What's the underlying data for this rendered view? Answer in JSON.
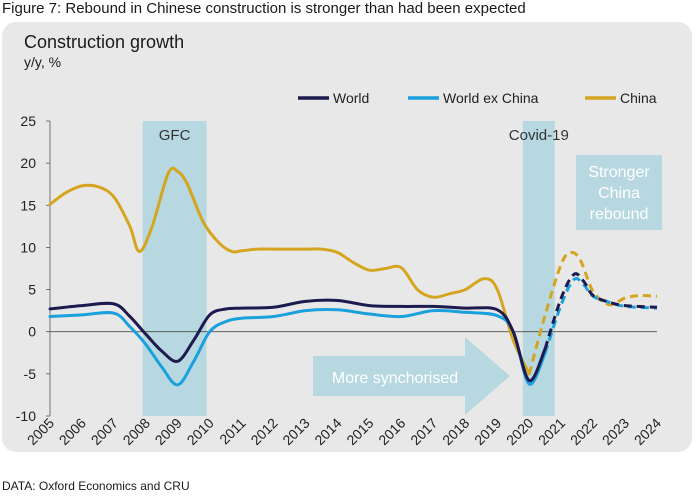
{
  "figure_title": "Figure 7: Rebound in Chinese construction is stronger than had been expected",
  "source": "DATA: Oxford Economics and CRU",
  "colors": {
    "world": "#1c1a4f",
    "world_ex_china": "#1aa0dc",
    "china": "#d6a520",
    "band": "#b7d8e1",
    "arrow": "#b7d8e1",
    "panel": "#e8e8e8"
  },
  "chart_data": {
    "type": "line",
    "title": "Construction growth",
    "ylabel": "y/y, %",
    "xlabel": "",
    "ylim": [
      -10,
      25
    ],
    "xlim": [
      2005,
      2024
    ],
    "yticks": [
      25,
      20,
      15,
      10,
      5,
      0,
      -5,
      -10
    ],
    "xticks": [
      "2005",
      "2006",
      "2007",
      "2008",
      "2009",
      "2010",
      "2011",
      "2012",
      "2013",
      "2014",
      "2015",
      "2016",
      "2017",
      "2018",
      "2019",
      "2020",
      "2021",
      "2022",
      "2023",
      "2024"
    ],
    "legend_position": "top-right",
    "series": [
      {
        "name": "World",
        "color": "#1c1a4f",
        "solid": [
          [
            2005,
            2.7
          ],
          [
            2006,
            3.1
          ],
          [
            2007,
            3.3
          ],
          [
            2007.5,
            1.8
          ],
          [
            2008,
            -0.3
          ],
          [
            2008.5,
            -2.3
          ],
          [
            2009,
            -3.5
          ],
          [
            2009.5,
            -1.0
          ],
          [
            2010,
            2.0
          ],
          [
            2010.5,
            2.7
          ],
          [
            2011,
            2.8
          ],
          [
            2012,
            2.9
          ],
          [
            2013,
            3.6
          ],
          [
            2014,
            3.7
          ],
          [
            2015,
            3.1
          ],
          [
            2016,
            3.0
          ],
          [
            2017,
            3.0
          ],
          [
            2018,
            2.8
          ],
          [
            2019,
            2.6
          ],
          [
            2019.5,
            0.0
          ],
          [
            2020,
            -5.8
          ],
          [
            2020.5,
            -2.0
          ]
        ],
        "forecast": [
          [
            2020.5,
            -2.0
          ],
          [
            2021,
            4.0
          ],
          [
            2021.4,
            6.8
          ],
          [
            2021.7,
            6.0
          ],
          [
            2022,
            4.3
          ],
          [
            2022.5,
            3.5
          ],
          [
            2023,
            3.1
          ],
          [
            2024,
            2.9
          ]
        ]
      },
      {
        "name": "World ex China",
        "color": "#1aa0dc",
        "solid": [
          [
            2005,
            1.8
          ],
          [
            2006,
            2.0
          ],
          [
            2007,
            2.2
          ],
          [
            2007.5,
            0.6
          ],
          [
            2008,
            -1.5
          ],
          [
            2008.5,
            -4.2
          ],
          [
            2009,
            -6.3
          ],
          [
            2009.5,
            -3.5
          ],
          [
            2010,
            0.0
          ],
          [
            2010.5,
            1.2
          ],
          [
            2011,
            1.6
          ],
          [
            2012,
            1.8
          ],
          [
            2013,
            2.5
          ],
          [
            2014,
            2.6
          ],
          [
            2015,
            2.1
          ],
          [
            2016,
            1.8
          ],
          [
            2017,
            2.5
          ],
          [
            2018,
            2.3
          ],
          [
            2019,
            1.9
          ],
          [
            2019.5,
            0.0
          ],
          [
            2020,
            -6.2
          ],
          [
            2020.5,
            -2.5
          ]
        ],
        "forecast": [
          [
            2020.5,
            -2.5
          ],
          [
            2021,
            3.2
          ],
          [
            2021.4,
            6.2
          ],
          [
            2021.7,
            5.6
          ],
          [
            2022,
            4.2
          ],
          [
            2022.5,
            3.5
          ],
          [
            2023,
            3.0
          ],
          [
            2024,
            2.8
          ]
        ]
      },
      {
        "name": "China",
        "color": "#d6a520",
        "solid": [
          [
            2005,
            15.1
          ],
          [
            2005.5,
            16.5
          ],
          [
            2006,
            17.3
          ],
          [
            2006.5,
            17.2
          ],
          [
            2007,
            16.0
          ],
          [
            2007.5,
            12.5
          ],
          [
            2007.8,
            9.5
          ],
          [
            2008.2,
            12.5
          ],
          [
            2008.7,
            18.8
          ],
          [
            2009,
            19.0
          ],
          [
            2009.3,
            17.5
          ],
          [
            2009.8,
            13.0
          ],
          [
            2010.3,
            10.5
          ],
          [
            2010.7,
            9.5
          ],
          [
            2011,
            9.6
          ],
          [
            2011.5,
            9.8
          ],
          [
            2012,
            9.8
          ],
          [
            2013,
            9.8
          ],
          [
            2013.5,
            9.8
          ],
          [
            2014,
            9.4
          ],
          [
            2014.5,
            8.2
          ],
          [
            2015,
            7.3
          ],
          [
            2015.5,
            7.5
          ],
          [
            2016,
            7.6
          ],
          [
            2016.5,
            5.0
          ],
          [
            2017,
            4.1
          ],
          [
            2017.5,
            4.5
          ],
          [
            2018,
            5.0
          ],
          [
            2018.6,
            6.3
          ],
          [
            2019,
            5.0
          ],
          [
            2019.5,
            -1.0
          ],
          [
            2020,
            -5.0
          ]
        ],
        "forecast": [
          [
            2020,
            -5.0
          ],
          [
            2020.5,
            2.0
          ],
          [
            2021,
            8.0
          ],
          [
            2021.3,
            9.4
          ],
          [
            2021.6,
            8.5
          ],
          [
            2022,
            4.8
          ],
          [
            2022.5,
            3.2
          ],
          [
            2023,
            4.0
          ],
          [
            2023.5,
            4.3
          ],
          [
            2024,
            4.2
          ]
        ]
      }
    ],
    "bands": [
      {
        "label": "GFC",
        "x0": 2007.9,
        "x1": 2009.9
      },
      {
        "label": "Covid-19",
        "x0": 2019.8,
        "x1": 2020.8
      }
    ],
    "annotations": {
      "stronger": [
        "Stronger",
        "China",
        "rebound"
      ],
      "synch": "More synchorised"
    }
  }
}
